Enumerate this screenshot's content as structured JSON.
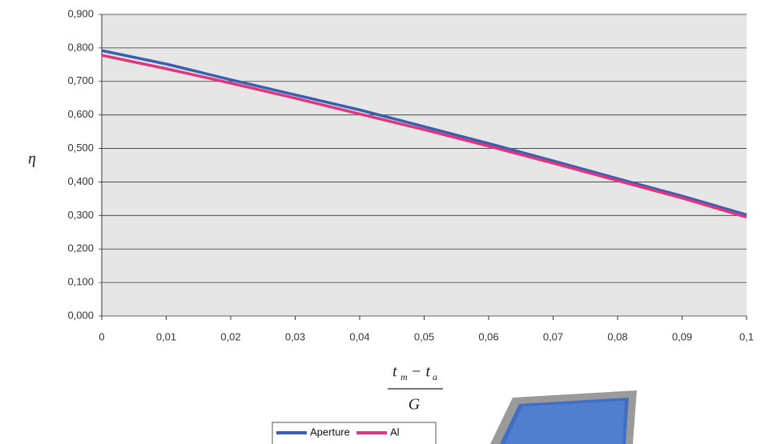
{
  "chart_data": {
    "type": "line",
    "ylabel": "η",
    "xlabel": {
      "numerator": [
        "t",
        "m",
        "− t",
        "a"
      ],
      "denominator": "G"
    },
    "x": [
      0,
      0.01,
      0.02,
      0.03,
      0.04,
      0.05,
      0.06,
      0.07,
      0.08,
      0.09,
      0.1
    ],
    "series": [
      {
        "name": "Aperture",
        "color": "#3a5fb0",
        "values": [
          0.792,
          0.752,
          0.705,
          0.66,
          0.615,
          0.565,
          0.515,
          0.463,
          0.41,
          0.358,
          0.302
        ]
      },
      {
        "name": "Al",
        "color": "#e0357f",
        "values": [
          0.778,
          0.738,
          0.695,
          0.65,
          0.603,
          0.556,
          0.507,
          0.456,
          0.404,
          0.352,
          0.295
        ]
      }
    ],
    "xlim": [
      0,
      0.1
    ],
    "ylim": [
      0,
      0.9
    ],
    "xticks": [
      0,
      {
        "value": 0.01,
        "label": "0,01"
      },
      {
        "value": 0.02,
        "label": "0,02"
      },
      {
        "value": 0.03,
        "label": "0,03"
      },
      {
        "value": 0.04,
        "label": "0,04"
      },
      {
        "value": 0.05,
        "label": "0,05"
      },
      {
        "value": 0.06,
        "label": "0,06"
      },
      {
        "value": 0.07,
        "label": "0,07"
      },
      {
        "value": 0.08,
        "label": "0,08"
      },
      {
        "value": 0.09,
        "label": "0,09"
      },
      {
        "value": 0.1,
        "label": "0,1"
      }
    ],
    "yticks": [
      {
        "value": 0,
        "label": "0,000"
      },
      {
        "value": 0.1,
        "label": "0,100"
      },
      {
        "value": 0.2,
        "label": "0,200"
      },
      {
        "value": 0.3,
        "label": "0,300"
      },
      {
        "value": 0.4,
        "label": "0,400"
      },
      {
        "value": 0.5,
        "label": "0,500"
      },
      {
        "value": 0.6,
        "label": "0,600"
      },
      {
        "value": 0.7,
        "label": "0,700"
      },
      {
        "value": 0.8,
        "label": "0,800"
      },
      {
        "value": 0.9,
        "label": "0,900"
      }
    ],
    "grid": true
  }
}
